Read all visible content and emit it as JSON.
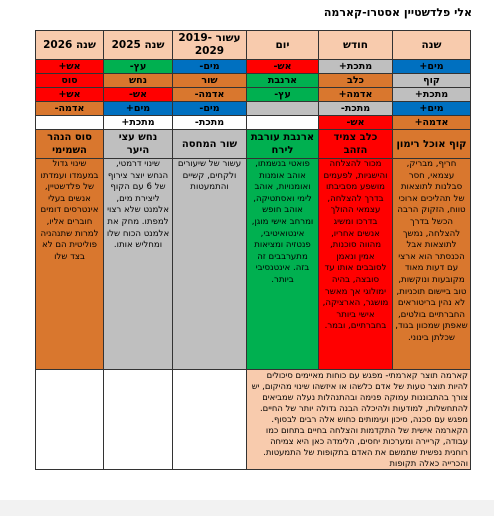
{
  "header": {
    "title": "אלי פלדשטיין אסטרו-קארמה"
  },
  "table": {
    "headers": [
      "שנה",
      "חודש",
      "יום",
      "עשור 2019-2029",
      "שנה 2025",
      "שנה 2026"
    ],
    "rows": [
      [
        "מים+",
        "מתכת+",
        "אש-",
        "מים-",
        "עץ-",
        "אש+"
      ],
      [
        "קוף",
        "כלב",
        "ארנבת",
        "שור",
        "נחש",
        "סוס"
      ],
      [
        "מתכת+",
        "אדמה+",
        "עץ-",
        "אדמה-",
        "אש-",
        "אש+"
      ],
      [
        "מים+",
        "מתכת-",
        null,
        "מים-",
        "מים+",
        "אדמה-"
      ],
      [
        "אדמה+",
        "אש-",
        null,
        "מתכת-",
        "מתכת+",
        null
      ],
      [
        "קוף אוכל רימון",
        "כלב צמיד הזהב",
        "ארנבת עורבת לירח",
        "שור המחסה",
        "נחש עצי היער",
        "סוס הנהר השמימי"
      ],
      [
        "חריף, מבריק, עצמאי, חסר סבלנות לתוצאות של תהליכים ארוכי טווח, הזקוק הרבה הכשל בדרך להצלחה, נמשך לתוצאות אבל הכנסתר הוא ארצי עם דעות מאוד מקובעות ונוקשות, טוב ביישום תוכניות, לא נהין בריטוראים החברתיים בולטים, שאפתן שמכוון בגוד, שכלתן בינוני.",
        "מכור להצלחה והישגיות, לפעמים מושפע מסביבתו בדרך להצלחה, עצמאי ההולך בדרכו ומשיג אנשים אחריו, מהווה סוכנות, אמין ונאמן לסובבים אותו עד סובצה, בהיה ימולוגי אך מאשר מושגר, הארציקה, אישי ביותר בחברתיים, ובמר.",
        "פואטי בנשמתו, אוהב אומנות ואומנויות, אוהב לימי ואסתטיקה, אוהב חופש ומרחב אישי מוגן, אינטואיטיבי, פנטזיה ומציאות מתערבבים זה בזה. אינטנסיבי ביותר.",
        "עשור של שיעורים ולקחים, קשיים והתמעטות",
        "שינוי דרמטי, הנחש יוצר צירוף של 6 עם הקוף ליצירת מים, אלמנט שלא רצוי למפתו. מחק את אלמנט הכוח שלו ומחליש אותו.",
        "שינוי גדול במעמדו ועמדתו של פלדשטיין, אנשים בעלי אינטרסים דומים חוברים אליו, למרות שתנהניה פוליטית הם לא בצד שלו"
      ]
    ],
    "karma": "קארמה תוצר קארמתי- מפגש עם כוחות מאיימים סיכולים להיות תוצר טעות של אדם כלשהו או איזשהו שינוי מהיקום, יש צורך בהתבוננות עמוקה פנימה ובהתנהלות נעלה שמביאים להתחשלות, למודעות ולהיכלה הבנה גדולה יותר של החיים. מפגש עם סכנה, סיכון ועימותים כחוש אלה רבים לבסוף. הקארמה אישית של התקדמות והצלחה בחיים בתחום כמו עבודה, קריירה ומערכות יחסים, הלימדה כאן היא צמיחה רוחנית נפשית שתמשם את האדם בתקופות של התמעטות. והכרייה כאלה תקופות"
  }
}
